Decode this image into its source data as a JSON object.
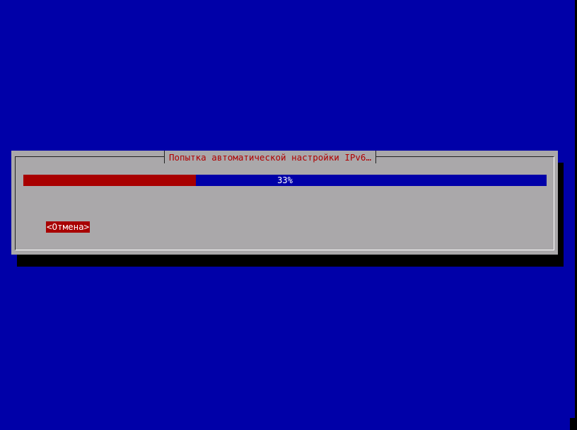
{
  "dialog": {
    "title": "Попытка автоматической настройки IPv6…",
    "progress_percent": 33,
    "progress_label": "33%",
    "cancel_label": "<Отмена>"
  },
  "colors": {
    "background": "#0000a8",
    "dialog": "#aaa8aa",
    "accent": "#a80000",
    "title_text": "#b00000"
  }
}
